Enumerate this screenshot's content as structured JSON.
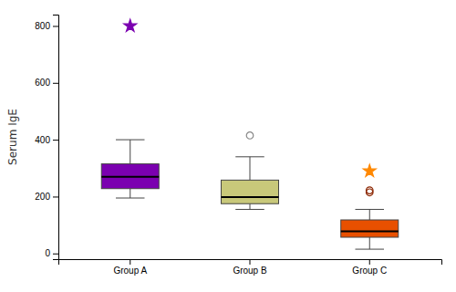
{
  "chart_data": {
    "type": "box",
    "ylabel": "Serum IgE",
    "categories": [
      "Group A",
      "Group B",
      "Group C"
    ],
    "colors": [
      "#7B00B0",
      "#C8C87A",
      "#E85000"
    ],
    "boxes": [
      {
        "median": 270,
        "q1": 228,
        "q3": 315,
        "whisker_low": 195,
        "whisker_high": 400
      },
      {
        "median": 198,
        "q1": 175,
        "q3": 258,
        "whisker_low": 155,
        "whisker_high": 340
      },
      {
        "median": 78,
        "q1": 57,
        "q3": 118,
        "whisker_low": 15,
        "whisker_high": 155
      }
    ],
    "fliers": [
      {
        "category": "Group A",
        "y": 800,
        "marker": "star",
        "color": "#7B00B0"
      },
      {
        "category": "Group B",
        "y": 415,
        "marker": "circle-open",
        "color": "#888888"
      },
      {
        "category": "Group C",
        "y": 290,
        "marker": "star",
        "color": "#FF8800"
      },
      {
        "category": "Group C",
        "y": 222,
        "marker": "circle-open",
        "color": "#8B2500"
      },
      {
        "category": "Group C",
        "y": 215,
        "marker": "circle-open",
        "color": "#8B2500"
      }
    ],
    "ylim": [
      -20,
      840
    ],
    "yticks": [
      0,
      200,
      400,
      600,
      800
    ],
    "grid": false
  }
}
